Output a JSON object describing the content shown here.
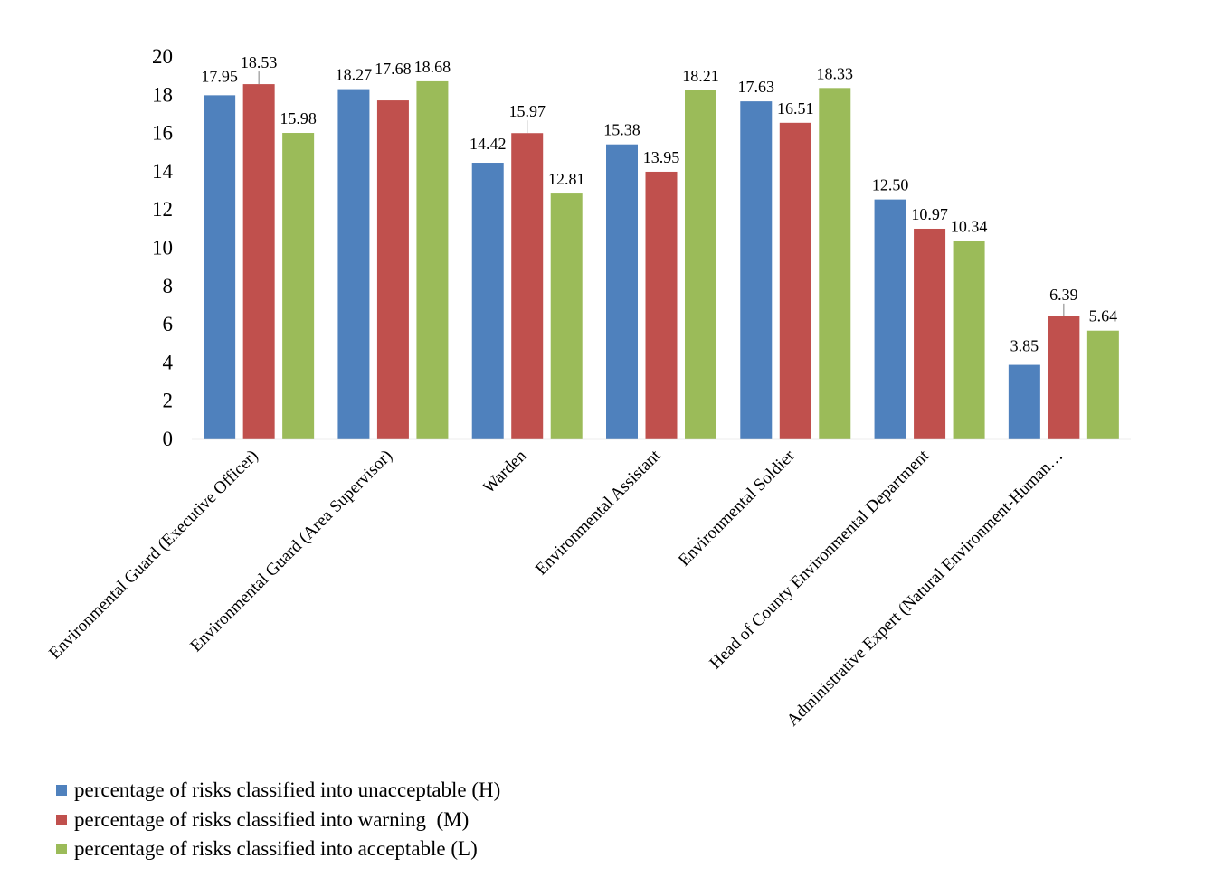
{
  "chart_data": {
    "type": "bar",
    "categories": [
      "Environmental Guard (Executive Officer)",
      "Environmental Guard (Area Supervisor)",
      "Warden",
      "Environmental Assistant",
      "Environmental Soldier",
      "Head of County Environmental Department",
      "Administrative Expert (Natural Environment-Human…"
    ],
    "series": [
      {
        "name": "percentage of risks classified into unacceptable (H)",
        "color": "#4F81BD",
        "values": [
          17.95,
          18.27,
          14.42,
          15.38,
          17.63,
          12.5,
          3.85
        ],
        "labels": [
          "17.95",
          "18.27",
          "14.42",
          "15.38",
          "17.63",
          "12.50",
          "3.85"
        ]
      },
      {
        "name": "percentage of risks classified into warning  (M)",
        "color": "#C0504D",
        "values": [
          18.53,
          17.68,
          15.97,
          13.95,
          16.51,
          10.97,
          6.39
        ],
        "labels": [
          "18.53",
          "17.68",
          "15.97",
          "13.95",
          "16.51",
          "10.97",
          "6.39"
        ]
      },
      {
        "name": "percentage of risks classified into acceptable (L)",
        "color": "#9BBB59",
        "values": [
          15.98,
          18.68,
          12.81,
          18.21,
          18.33,
          10.34,
          5.64
        ],
        "labels": [
          "15.98",
          "18.68",
          "12.81",
          "18.21",
          "18.33",
          "10.34",
          "5.64"
        ]
      }
    ],
    "yticks": [
      "0",
      "2",
      "4",
      "6",
      "8",
      "10",
      "12",
      "14",
      "16",
      "18",
      "20"
    ],
    "ylim": [
      0,
      20
    ],
    "grid": false,
    "legend_position": "bottom-left"
  }
}
